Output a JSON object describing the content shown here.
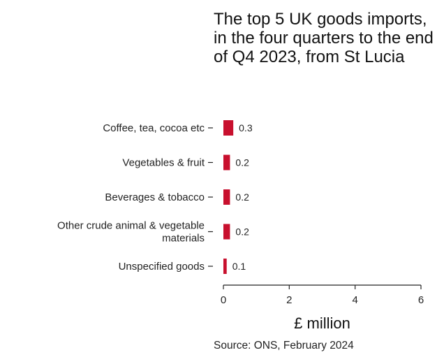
{
  "chart_data": {
    "type": "bar",
    "orientation": "horizontal",
    "title": "The top 5 UK goods imports, in the four quarters to the end of Q4 2023, from St Lucia",
    "categories": [
      [
        "Coffee, tea, cocoa etc"
      ],
      [
        "Vegetables & fruit"
      ],
      [
        "Beverages & tobacco"
      ],
      [
        "Other crude animal & vegetable",
        "materials"
      ],
      [
        "Unspecified goods"
      ]
    ],
    "values": [
      0.3,
      0.2,
      0.2,
      0.2,
      0.1
    ],
    "value_labels": [
      "0.3",
      "0.2",
      "0.2",
      "0.2",
      "0.1"
    ],
    "xlabel": "£ million",
    "xlim": [
      0,
      6
    ],
    "xticks": [
      0,
      2,
      4,
      6
    ],
    "grid": false,
    "colors": {
      "bar": "#c8102e",
      "axis": "#222222"
    }
  },
  "source": "Source: ONS, February 2024"
}
